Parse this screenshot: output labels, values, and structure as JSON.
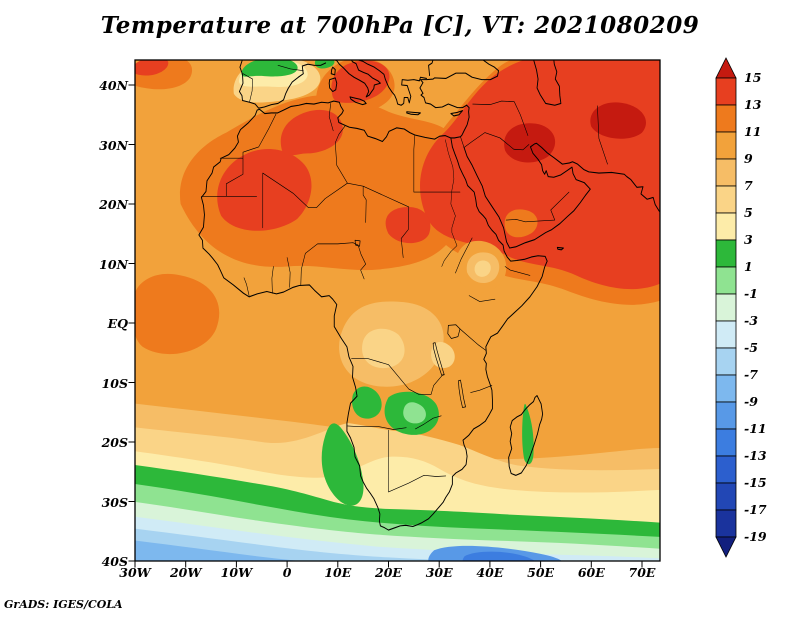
{
  "title": "Temperature at 700hPa [C], VT: 2021080209",
  "credit": "GrADS: IGES/COLA",
  "map": {
    "y_axis_labels": [
      "40N",
      "30N",
      "20N",
      "10N",
      "EQ",
      "10S",
      "20S",
      "30S",
      "40S"
    ],
    "x_axis_labels": [
      "30W",
      "20W",
      "10W",
      "0",
      "10E",
      "20E",
      "30E",
      "40E",
      "50E",
      "60E",
      "70E"
    ]
  },
  "colorbar": {
    "levels": [
      15,
      13,
      11,
      9,
      7,
      5,
      3,
      1,
      -1,
      -3,
      -5,
      -7,
      -9,
      -11,
      -13,
      -15,
      -17,
      -19
    ],
    "band_order": [
      "above_15",
      "13_15",
      "11_13",
      "9_11",
      "7_9",
      "5_7",
      "3_5",
      "1_3",
      "m1_1",
      "m3_m1",
      "m5_m3",
      "m7_m5",
      "m9_m7",
      "m11_m9",
      "m13_m11",
      "m15_m13",
      "m17_m15",
      "m19_m17",
      "below_m19"
    ],
    "palette": {
      "above_15": "#c51a10",
      "13_15": "#e73f20",
      "11_13": "#ee7a1d",
      "9_11": "#f2a23b",
      "7_9": "#f6bd66",
      "5_7": "#fad487",
      "3_5": "#fdeca9",
      "1_3": "#2db83a",
      "m1_1": "#8fe391",
      "m3_m1": "#d9f4d9",
      "m5_m3": "#d0ebf6",
      "m7_m5": "#a7d3f1",
      "m9_m7": "#7db8ee",
      "m11_m9": "#5899e7",
      "m13_m11": "#3c7de0",
      "m15_m13": "#2c5fce",
      "m17_m15": "#2247b5",
      "m19_m17": "#1a339d",
      "below_m19": "#121f7e"
    }
  },
  "chart_data": {
    "type": "heatmap",
    "title": "Temperature at 700hPa [C], VT: 2021080209",
    "variable": "Temperature",
    "level": "700hPa",
    "units": "C",
    "valid_time": "2021080209",
    "x_ticks": [
      "30W",
      "20W",
      "10W",
      "0",
      "10E",
      "20E",
      "30E",
      "40E",
      "50E",
      "60E",
      "70E"
    ],
    "y_ticks": [
      "40N",
      "30N",
      "20N",
      "10N",
      "EQ",
      "10S",
      "20S",
      "30S",
      "40S"
    ],
    "contour_interval": 2,
    "colorbar_range": [
      -19,
      15
    ],
    "legend_position": "right",
    "grid": false,
    "regional_values_C": [
      {
        "region": "Middle East / Arabian Peninsula / Iran",
        "approx": "13 to >15"
      },
      {
        "region": "Western Sahara - Mauritania (17-28N)",
        "approx": "13 to 15"
      },
      {
        "region": "Sahara and North African coast",
        "approx": "11 to 13"
      },
      {
        "region": "Sahel, tropical Atlantic, Horn of Africa seas",
        "approx": "9 to 11"
      },
      {
        "region": "Congo Basin",
        "approx": "5 to 9"
      },
      {
        "region": "Ethiopian Highlands (local minimum)",
        "approx": "5 to 11"
      },
      {
        "region": "Zambia / Angola highlands (green patches)",
        "approx": "1 to 3"
      },
      {
        "region": "Kalahari / interior South Africa",
        "approx": "3 to 7"
      },
      {
        "region": "Northern Iberia (green patch)",
        "approx": "1 to 3"
      },
      {
        "region": "Eastern Madagascar (green stripe)",
        "approx": "1 to 3"
      },
      {
        "region": "Southern Ocean 27-34S band",
        "approx": "-1 to 3"
      },
      {
        "region": "Southern Ocean 34-40S",
        "approx": "-9 to -3"
      },
      {
        "region": "SW Indian Ocean near 42E 39S (coldest core)",
        "approx": "-13 to -11"
      }
    ]
  }
}
